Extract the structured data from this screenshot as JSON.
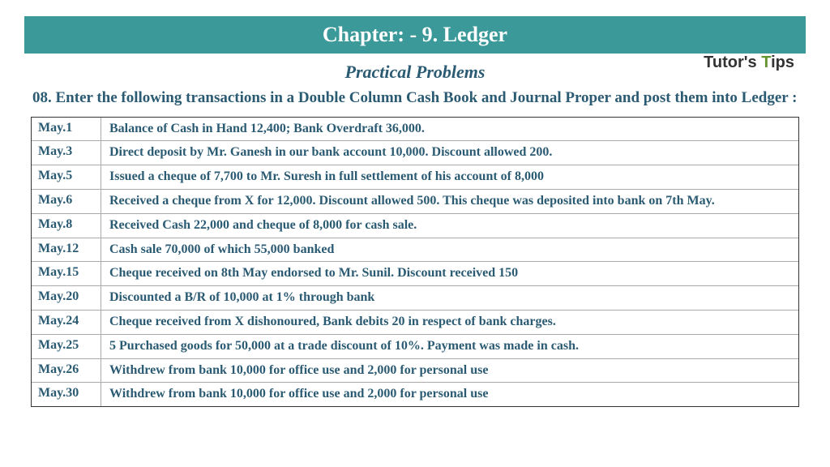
{
  "colors": {
    "teal": "#3b9999",
    "text_primary": "#2b5b73",
    "border": "#333333",
    "row_border": "#aaaaaa",
    "bg": "#ffffff",
    "logo_green": "#65952e"
  },
  "chapter_title": "Chapter: -  9. Ledger",
  "subtitle": "Practical Problems",
  "logo": {
    "part1": "Tutor's",
    "part2": "T",
    "part3": "ips"
  },
  "problem_heading": "08. Enter the following transactions in a Double Column Cash Book and Journal Proper and post them into Ledger :",
  "transactions": [
    {
      "date": "May.1",
      "desc": "Balance of Cash in Hand 12,400; Bank Overdraft 36,000."
    },
    {
      "date": "May.3",
      "desc": "Direct deposit by Mr. Ganesh in our bank account 10,000. Discount allowed 200."
    },
    {
      "date": "May.5",
      "desc": "Issued a cheque of 7,700 to Mr. Suresh in full settlement of his account of 8,000"
    },
    {
      "date": "May.6",
      "desc": "Received a cheque from X for 12,000. Discount allowed 500. This cheque was deposited into bank on 7th May."
    },
    {
      "date": "May.8",
      "desc": "Received Cash 22,000 and cheque of 8,000 for cash sale."
    },
    {
      "date": "May.12",
      "desc": "Cash sale 70,000 of which 55,000 banked"
    },
    {
      "date": "May.15",
      "desc": "Cheque received on 8th May endorsed to Mr. Sunil. Discount received 150"
    },
    {
      "date": "May.20",
      "desc": "Discounted a B/R of 10,000 at 1% through bank"
    },
    {
      "date": "May.24",
      "desc": "Cheque received from X dishonoured, Bank debits 20 in respect of bank charges."
    },
    {
      "date": "May.25",
      "desc": "5 Purchased goods for 50,000 at a trade discount of 10%. Payment was made in cash."
    },
    {
      "date": "May.26",
      "desc": "Withdrew from bank 10,000 for office use and 2,000 for personal use"
    },
    {
      "date": "May.30",
      "desc": "Withdrew from bank 10,000 for office use and 2,000 for personal use"
    }
  ]
}
